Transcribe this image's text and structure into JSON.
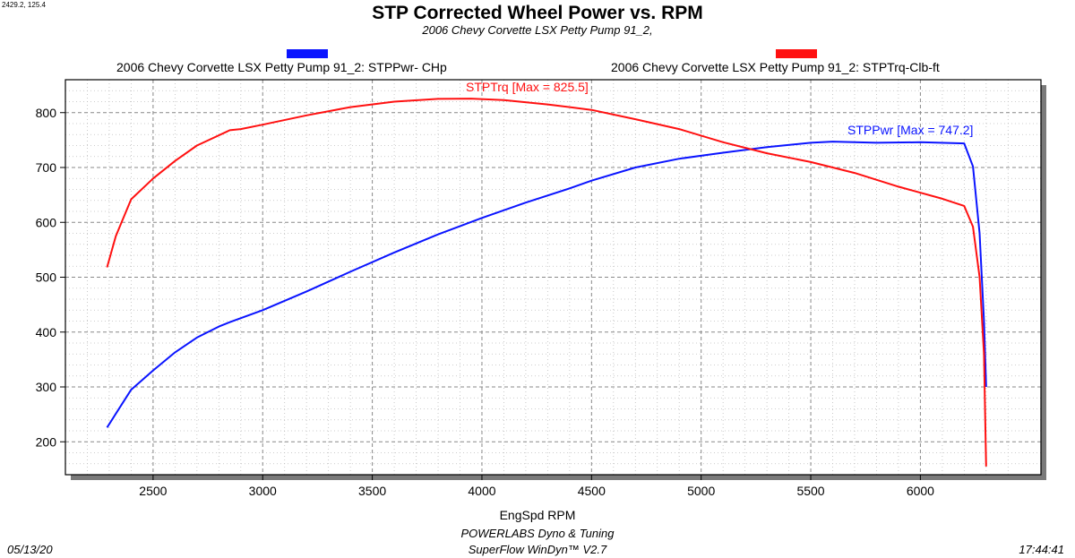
{
  "header": {
    "coord_readout": "2429.2, 125.4",
    "title": "STP Corrected Wheel Power vs. RPM",
    "subtitle": "2006 Chevy Corvette LSX Petty Pump 91_2,"
  },
  "footer": {
    "date": "05/13/20",
    "time": "17:44:41",
    "line1": "POWERLABS Dyno & Tuning",
    "line2": "SuperFlow WinDyn™ V2.7"
  },
  "colors": {
    "power": "#0a14ff",
    "torque": "#ff1010",
    "grid": "#888888",
    "frame": "#000000"
  },
  "chart_data": {
    "type": "line",
    "title": "STP Corrected Wheel Power vs. RPM",
    "subtitle": "2006 Chevy Corvette LSX Petty Pump 91_2,",
    "xlabel": "EngSpd  RPM",
    "ylabel": "",
    "xlim": [
      2100,
      6550
    ],
    "ylim": [
      140,
      860
    ],
    "x_ticks": [
      2500,
      3000,
      3500,
      4000,
      4500,
      5000,
      5500,
      6000
    ],
    "y_ticks": [
      200,
      300,
      400,
      500,
      600,
      700,
      800
    ],
    "x_minor_step": 100,
    "y_minor_step": 20,
    "grid": true,
    "series": [
      {
        "name": "2006 Chevy Corvette LSX Petty Pump 91_2: STPPwr- CHp",
        "color": "#0a14ff",
        "annotation": "STPPwr [Max = 747.2]",
        "points": [
          [
            2290,
            226
          ],
          [
            2400,
            295
          ],
          [
            2500,
            330
          ],
          [
            2600,
            363
          ],
          [
            2700,
            390
          ],
          [
            2800,
            410
          ],
          [
            2850,
            418
          ],
          [
            3000,
            440
          ],
          [
            3200,
            474
          ],
          [
            3400,
            510
          ],
          [
            3600,
            545
          ],
          [
            3800,
            578
          ],
          [
            4000,
            608
          ],
          [
            4200,
            636
          ],
          [
            4400,
            662
          ],
          [
            4500,
            676
          ],
          [
            4700,
            700
          ],
          [
            4900,
            716
          ],
          [
            5100,
            727
          ],
          [
            5300,
            737
          ],
          [
            5500,
            745
          ],
          [
            5600,
            747.2
          ],
          [
            5800,
            745
          ],
          [
            6000,
            746
          ],
          [
            6200,
            744
          ],
          [
            6240,
            702
          ],
          [
            6270,
            580
          ],
          [
            6290,
            420
          ],
          [
            6300,
            300
          ]
        ]
      },
      {
        "name": "2006 Chevy Corvette LSX Petty Pump 91_2: STPTrq-Clb-ft",
        "color": "#ff1010",
        "annotation": "STPTrq [Max = 825.5]",
        "points": [
          [
            2290,
            518
          ],
          [
            2330,
            575
          ],
          [
            2400,
            642
          ],
          [
            2500,
            680
          ],
          [
            2600,
            712
          ],
          [
            2700,
            740
          ],
          [
            2850,
            768
          ],
          [
            2900,
            770
          ],
          [
            3000,
            778
          ],
          [
            3200,
            795
          ],
          [
            3400,
            810
          ],
          [
            3600,
            820
          ],
          [
            3800,
            825
          ],
          [
            3950,
            825.5
          ],
          [
            4100,
            823
          ],
          [
            4300,
            815
          ],
          [
            4500,
            805
          ],
          [
            4700,
            788
          ],
          [
            4900,
            770
          ],
          [
            5100,
            746
          ],
          [
            5300,
            726
          ],
          [
            5500,
            710
          ],
          [
            5700,
            690
          ],
          [
            5900,
            665
          ],
          [
            6100,
            643
          ],
          [
            6200,
            630
          ],
          [
            6240,
            592
          ],
          [
            6270,
            500
          ],
          [
            6290,
            360
          ],
          [
            6300,
            155
          ]
        ]
      }
    ]
  }
}
